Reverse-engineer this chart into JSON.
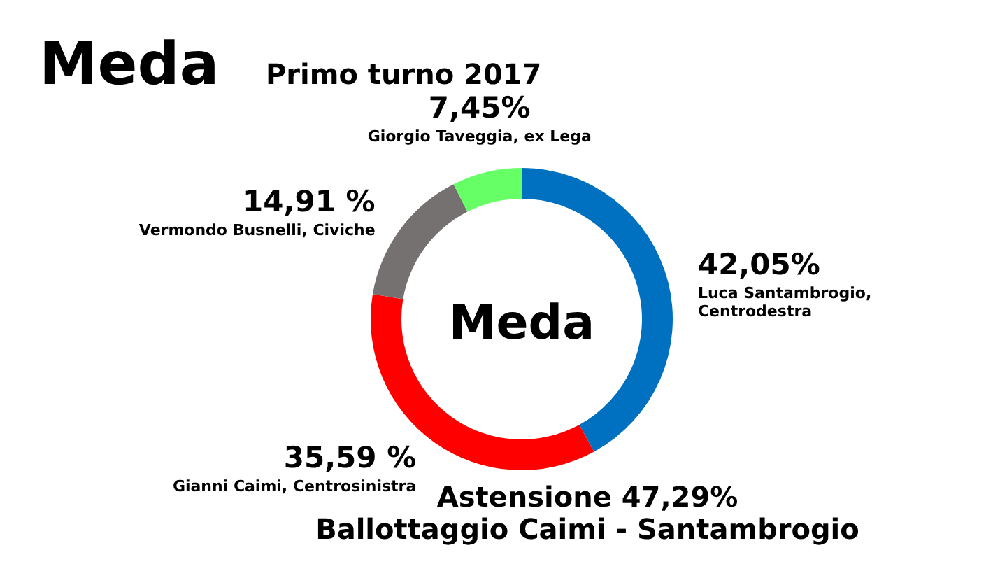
{
  "chart_data": {
    "type": "donut",
    "title": "Meda",
    "subtitle": "Primo turno 2017",
    "categories": [
      "Luca Santambrogio, Centrodestra",
      "Gianni Caimi, Centrosinistra",
      "Vermondo Busnelli, Civiche",
      "Giorgio Taveggia, ex Lega"
    ],
    "values": [
      42.05,
      35.59,
      14.91,
      7.45
    ],
    "value_labels": [
      "42,05%",
      "35,59 %",
      "14,91 %",
      "7,45%"
    ],
    "colors": [
      "#0070c0",
      "#ff0000",
      "#767171",
      "#66ff66"
    ],
    "annotations": [
      "Meda",
      "Astensione 47,29%",
      "Ballottaggio Caimi - Santambrogio"
    ]
  }
}
